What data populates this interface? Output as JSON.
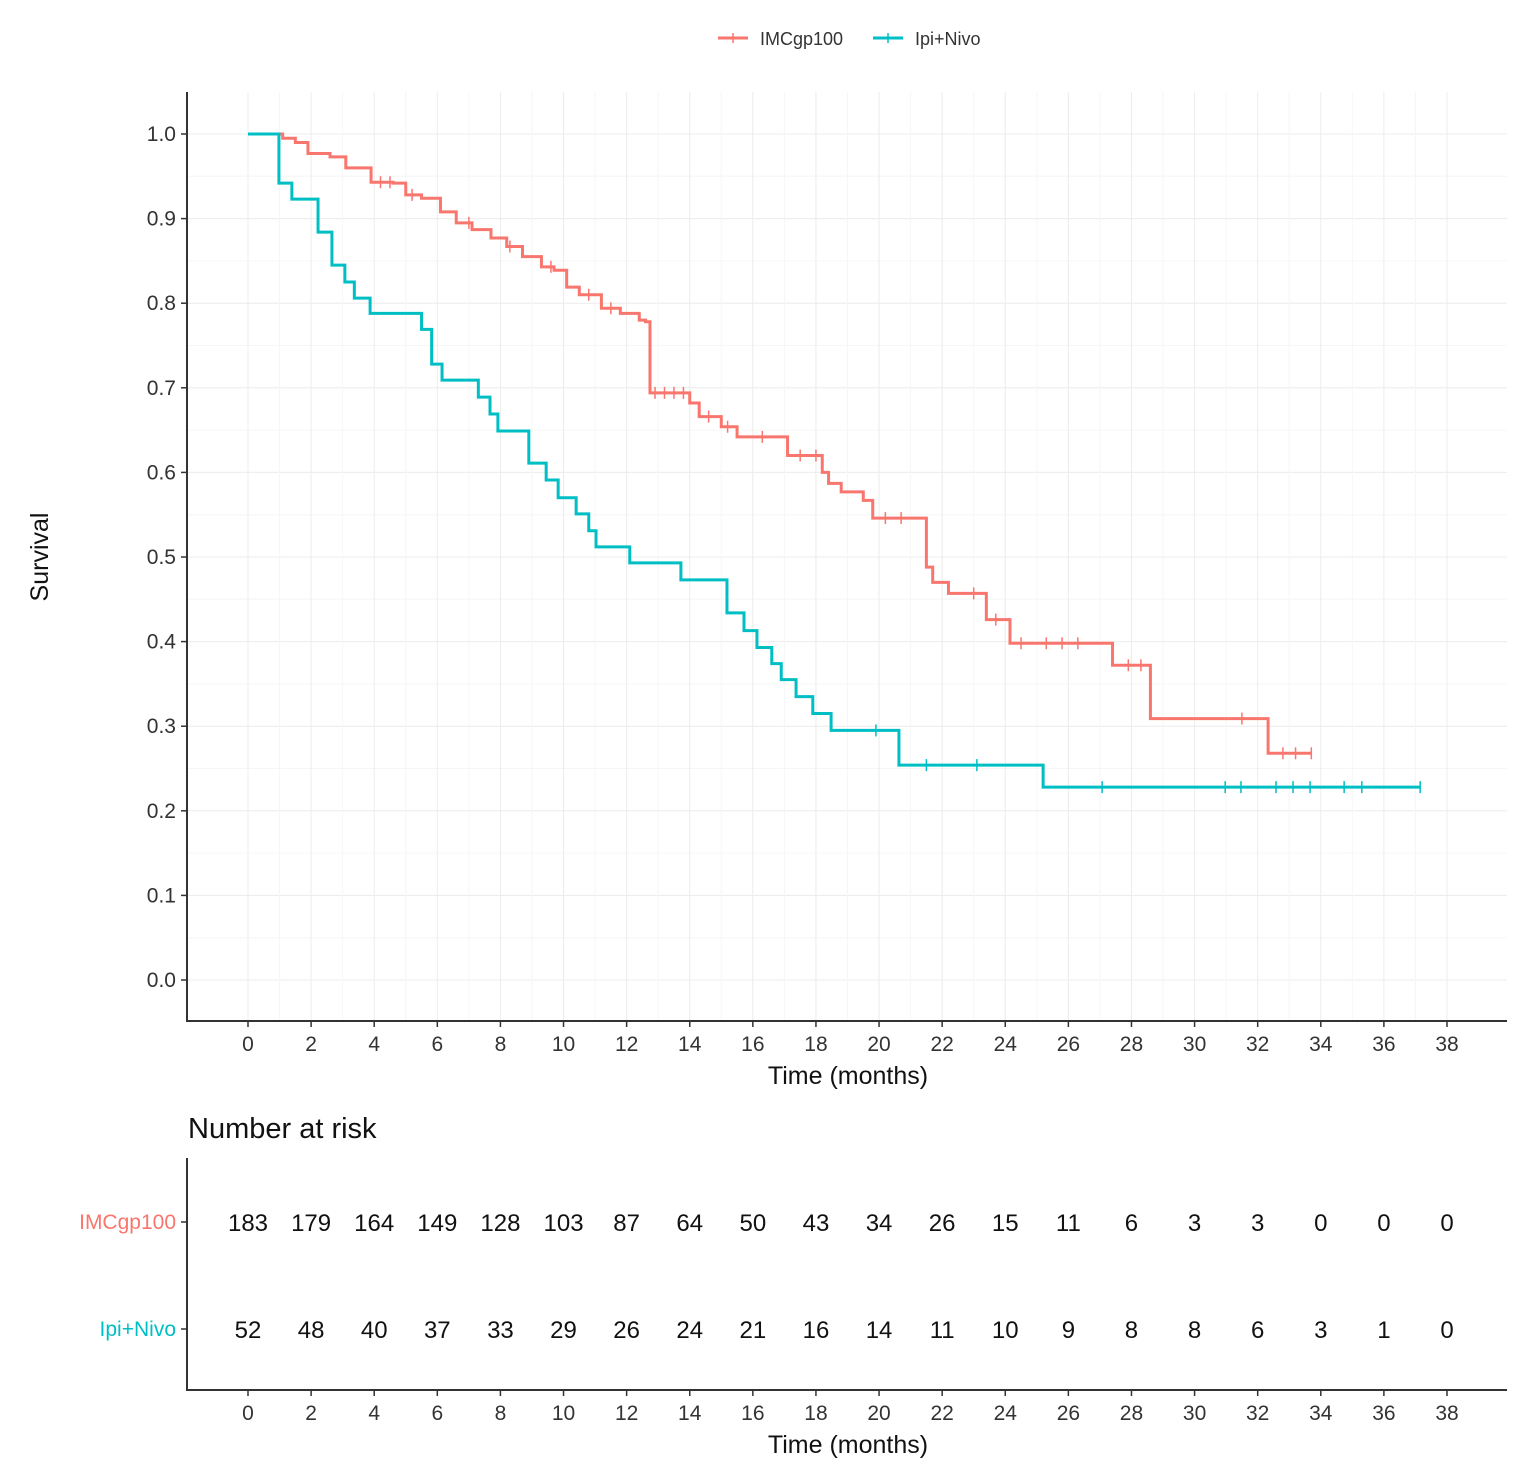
{
  "chart_data": {
    "type": "line",
    "subtype": "kaplan-meier step",
    "title": "",
    "xlabel": "Time (months)",
    "ylabel": "Survival",
    "xlim": [
      0,
      38
    ],
    "ylim": [
      0,
      1
    ],
    "xticks": [
      0,
      2,
      4,
      6,
      8,
      10,
      12,
      14,
      16,
      18,
      20,
      22,
      24,
      26,
      28,
      30,
      32,
      34,
      36,
      38
    ],
    "yticks": [
      0.0,
      0.1,
      0.2,
      0.3,
      0.4,
      0.5,
      0.6,
      0.7,
      0.8,
      0.9,
      1.0
    ],
    "ytick_labels": [
      "0.0",
      "0.1",
      "0.2",
      "0.3",
      "0.4",
      "0.5",
      "0.6",
      "0.7",
      "0.8",
      "0.9",
      "1.0"
    ],
    "grid": true,
    "legend_position": "top",
    "series": [
      {
        "name": "IMCgp100",
        "color": "#F8766D",
        "steps": [
          [
            0,
            1.0
          ],
          [
            1.1,
            0.995
          ],
          [
            1.5,
            0.99
          ],
          [
            1.9,
            0.977
          ],
          [
            2.6,
            0.973
          ],
          [
            3.1,
            0.96
          ],
          [
            3.9,
            0.943
          ],
          [
            4.6,
            0.942
          ],
          [
            5.0,
            0.928
          ],
          [
            5.5,
            0.924
          ],
          [
            6.1,
            0.908
          ],
          [
            6.6,
            0.895
          ],
          [
            7.1,
            0.887
          ],
          [
            7.7,
            0.877
          ],
          [
            8.2,
            0.867
          ],
          [
            8.7,
            0.855
          ],
          [
            9.3,
            0.843
          ],
          [
            9.7,
            0.839
          ],
          [
            10.1,
            0.819
          ],
          [
            10.5,
            0.81
          ],
          [
            11.2,
            0.794
          ],
          [
            11.8,
            0.788
          ],
          [
            12.4,
            0.78
          ],
          [
            12.6,
            0.778
          ],
          [
            12.74,
            0.694
          ],
          [
            14.0,
            0.682
          ],
          [
            14.3,
            0.666
          ],
          [
            15.0,
            0.654
          ],
          [
            15.5,
            0.642
          ],
          [
            17.1,
            0.62
          ],
          [
            18.2,
            0.6
          ],
          [
            18.4,
            0.587
          ],
          [
            18.8,
            0.577
          ],
          [
            19.5,
            0.567
          ],
          [
            19.8,
            0.546
          ],
          [
            21.5,
            0.488
          ],
          [
            21.7,
            0.47
          ],
          [
            22.2,
            0.457
          ],
          [
            23.4,
            0.426
          ],
          [
            24.15,
            0.398
          ],
          [
            27.4,
            0.372
          ],
          [
            28.6,
            0.309
          ],
          [
            32.33,
            0.268
          ]
        ],
        "end": 33.7,
        "censored": [
          4.2,
          4.5,
          5.2,
          7.0,
          8.3,
          9.6,
          10.8,
          11.5,
          12.9,
          13.2,
          13.5,
          13.8,
          14.6,
          15.2,
          16.3,
          17.5,
          18.0,
          20.2,
          20.7,
          23.0,
          23.7,
          24.5,
          25.3,
          25.8,
          26.3,
          27.9,
          28.3,
          31.5,
          32.8,
          33.2,
          33.7
        ]
      },
      {
        "name": "Ipi+Nivo",
        "color": "#00BFC4",
        "steps": [
          [
            0,
            1.0
          ],
          [
            0.98,
            0.942
          ],
          [
            1.39,
            0.923
          ],
          [
            2.22,
            0.884
          ],
          [
            2.66,
            0.845
          ],
          [
            3.07,
            0.825
          ],
          [
            3.37,
            0.806
          ],
          [
            3.87,
            0.788
          ],
          [
            5.5,
            0.769
          ],
          [
            5.82,
            0.728
          ],
          [
            6.15,
            0.709
          ],
          [
            7.3,
            0.689
          ],
          [
            7.67,
            0.669
          ],
          [
            7.92,
            0.649
          ],
          [
            8.9,
            0.611
          ],
          [
            9.45,
            0.591
          ],
          [
            9.83,
            0.57
          ],
          [
            10.4,
            0.551
          ],
          [
            10.8,
            0.531
          ],
          [
            11.03,
            0.512
          ],
          [
            12.1,
            0.493
          ],
          [
            13.72,
            0.473
          ],
          [
            15.18,
            0.434
          ],
          [
            15.72,
            0.413
          ],
          [
            16.13,
            0.393
          ],
          [
            16.6,
            0.374
          ],
          [
            16.9,
            0.355
          ],
          [
            17.37,
            0.335
          ],
          [
            17.9,
            0.315
          ],
          [
            18.48,
            0.295
          ],
          [
            20.63,
            0.254
          ],
          [
            25.2,
            0.228
          ]
        ],
        "end": 37.15,
        "censored": [
          19.9,
          21.5,
          23.1,
          27.07,
          30.97,
          31.47,
          32.58,
          33.12,
          33.66,
          34.74,
          35.3,
          37.15
        ]
      }
    ],
    "risk_table": {
      "title": "Number at risk",
      "xlabel": "Time (months)",
      "times": [
        0,
        2,
        4,
        6,
        8,
        10,
        12,
        14,
        16,
        18,
        20,
        22,
        24,
        26,
        28,
        30,
        32,
        34,
        36,
        38
      ],
      "rows": [
        {
          "name": "IMCgp100",
          "color": "#F8766D",
          "values": [
            183,
            179,
            164,
            149,
            128,
            103,
            87,
            64,
            50,
            43,
            34,
            26,
            15,
            11,
            6,
            3,
            3,
            0,
            0,
            0
          ]
        },
        {
          "name": "Ipi+Nivo",
          "color": "#00BFC4",
          "values": [
            52,
            48,
            40,
            37,
            33,
            29,
            26,
            24,
            21,
            16,
            14,
            11,
            10,
            9,
            8,
            8,
            6,
            3,
            1,
            0
          ]
        }
      ]
    }
  }
}
